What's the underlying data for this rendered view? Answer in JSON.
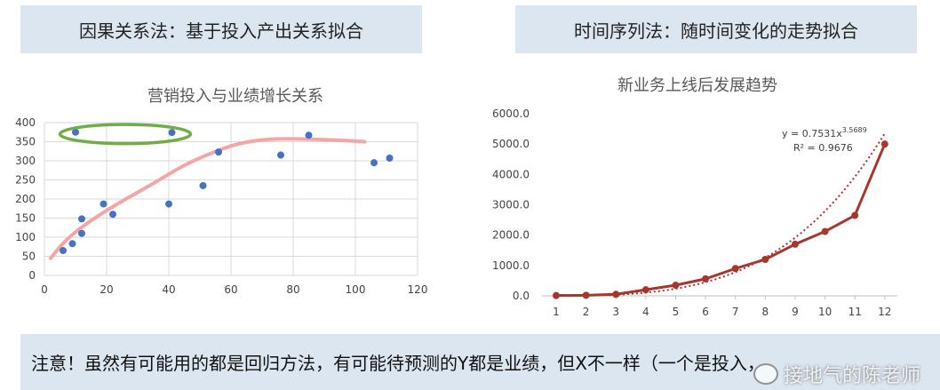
{
  "header_left": "因果关系法：基于投入产出关系拟合",
  "header_right": "时间序列法：随时间变化的走势拟合",
  "note": "注意！虽然有可能用的都是回归方法，有可能待预测的Y都是业绩，但X不一样（一个是投入，",
  "watermark": "接地气的陈老师",
  "colors": {
    "panel_bg": "#dce6f1",
    "scatter_point": "#4472c4",
    "trend_pink": "#f4a6a6",
    "highlight_ellipse": "#70ad47",
    "line_series": "#a9362a"
  },
  "chart_data": [
    {
      "type": "scatter",
      "title": "营销投入与业绩增长关系",
      "x_ticks": [
        "0",
        "20",
        "40",
        "60",
        "80",
        "100",
        "120"
      ],
      "y_ticks": [
        "0",
        "50",
        "100",
        "150",
        "200",
        "250",
        "300",
        "350",
        "400"
      ],
      "xlim": [
        0,
        120
      ],
      "ylim": [
        0,
        400
      ],
      "grid": true,
      "points": [
        {
          "x": 6,
          "y": 65
        },
        {
          "x": 9,
          "y": 83
        },
        {
          "x": 10,
          "y": 375
        },
        {
          "x": 12,
          "y": 148
        },
        {
          "x": 12,
          "y": 110
        },
        {
          "x": 19,
          "y": 187
        },
        {
          "x": 22,
          "y": 160
        },
        {
          "x": 40,
          "y": 187
        },
        {
          "x": 41,
          "y": 374
        },
        {
          "x": 51,
          "y": 235
        },
        {
          "x": 56,
          "y": 323
        },
        {
          "x": 76,
          "y": 315
        },
        {
          "x": 85,
          "y": 367
        },
        {
          "x": 106,
          "y": 295
        },
        {
          "x": 111,
          "y": 307
        }
      ],
      "hand_drawn_trend": [
        {
          "x": 2,
          "y": 45
        },
        {
          "x": 7,
          "y": 95
        },
        {
          "x": 15,
          "y": 145
        },
        {
          "x": 25,
          "y": 195
        },
        {
          "x": 35,
          "y": 240
        },
        {
          "x": 45,
          "y": 290
        },
        {
          "x": 55,
          "y": 325
        },
        {
          "x": 62,
          "y": 345
        },
        {
          "x": 72,
          "y": 358
        },
        {
          "x": 85,
          "y": 357
        },
        {
          "x": 97,
          "y": 353
        },
        {
          "x": 103,
          "y": 350
        }
      ],
      "highlight_ellipse": {
        "x_center": 26,
        "y_center": 370,
        "x_radius": 21,
        "y_radius": 25
      }
    },
    {
      "type": "line",
      "title": "新业务上线后发展趋势",
      "categories": [
        "1",
        "2",
        "3",
        "4",
        "5",
        "6",
        "7",
        "8",
        "9",
        "10",
        "11",
        "12"
      ],
      "values": [
        10,
        20,
        50,
        200,
        350,
        560,
        900,
        1200,
        1700,
        2120,
        2650,
        5000
      ],
      "y_ticks": [
        "0.0",
        "1000.0",
        "2000.0",
        "3000.0",
        "4000.0",
        "5000.0",
        "6000.0"
      ],
      "ylim": [
        0,
        6000
      ],
      "grid": false,
      "trendline": {
        "type": "power",
        "a": 0.7531,
        "b": 3.5689
      },
      "equation": "y = 0.7531x",
      "equation_exponent": "3.5689",
      "r_squared": "R² = 0.9676"
    }
  ]
}
